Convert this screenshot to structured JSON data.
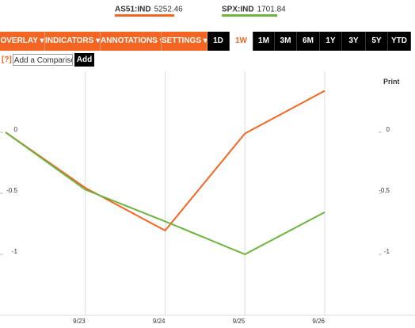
{
  "toolbar": {
    "menus": [
      "OVERLAY ▾",
      "INDICATORS ▾",
      "ANNOTATIONS ▾",
      "SETTINGS ▾"
    ],
    "ranges": [
      "1D",
      "1W",
      "1M",
      "3M",
      "6M",
      "1Y",
      "3Y",
      "5Y",
      "YTD"
    ],
    "selected_range": "1W",
    "help": "[?]",
    "comparison_placeholder": "Add a Comparison",
    "add_button": "Add",
    "print": "Print"
  },
  "chart_data": {
    "type": "line",
    "categories": [
      null,
      "9/23",
      "9/24",
      "9/25",
      "9/26"
    ],
    "series": [
      {
        "name": "AS51:IND",
        "last_value": 5252.46,
        "color": "#f26522",
        "values": [
          0,
          -0.455,
          -0.805,
          -0.01,
          0.34
        ]
      },
      {
        "name": "SPX:IND",
        "last_value": 1701.84,
        "color": "#6cb33f",
        "values": [
          0,
          -0.47,
          -0.73,
          -1.0,
          -0.655
        ]
      }
    ],
    "ylim": [
      -1.5,
      0.5
    ],
    "yticks": [
      0,
      -0.5,
      -1
    ],
    "grid": true
  }
}
